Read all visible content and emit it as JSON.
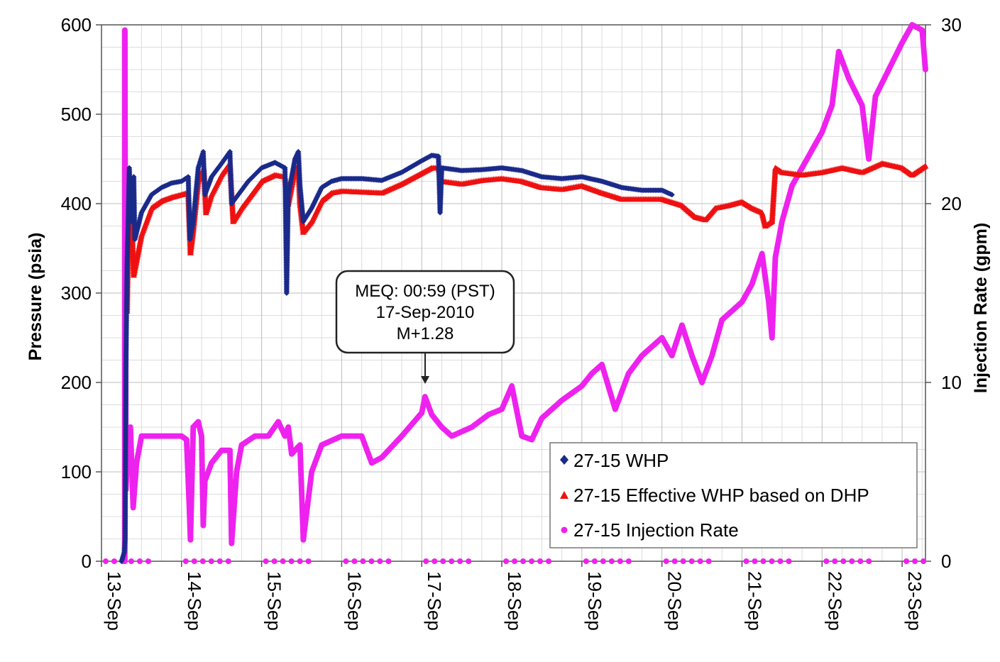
{
  "chart_data": {
    "type": "scatter",
    "x_axis": {
      "type": "date",
      "range": [
        "2010-09-13",
        "2010-09-23T07:00"
      ],
      "tick_labels": [
        "13-Sep",
        "14-Sep",
        "15-Sep",
        "16-Sep",
        "17-Sep",
        "18-Sep",
        "19-Sep",
        "20-Sep",
        "21-Sep",
        "22-Sep",
        "23-Sep"
      ]
    },
    "y_left": {
      "label": "Pressure (psia)",
      "range": [
        0,
        600
      ],
      "ticks": [
        "0",
        "100",
        "200",
        "300",
        "400",
        "500",
        "600"
      ]
    },
    "y_right": {
      "label": "Injection Rate (gpm)",
      "range": [
        0,
        30
      ],
      "ticks": [
        "0",
        "10",
        "20",
        "30"
      ]
    },
    "grid": true,
    "legend": {
      "placement": "bottom-right",
      "entries": [
        "27-15 WHP",
        "27-15 Effective WHP based on DHP",
        "27-15 Injection Rate"
      ]
    },
    "annotation": {
      "lines": [
        "MEQ: 00:59 (PST)",
        "17-Sep-2010",
        "M+1.28"
      ],
      "points_to": {
        "x": "2010-09-17T00:59",
        "rate": 10.0
      }
    },
    "colors": {
      "whp": "#1a2a8a",
      "effective": "#ee1111",
      "rate": "#ee22ee"
    },
    "series": [
      {
        "name": "27-15 WHP",
        "marker": "diamond",
        "axis": "left",
        "points": [
          [
            "2010-09-13T06:00",
            0
          ],
          [
            "2010-09-13T06:50",
            10
          ],
          [
            "2010-09-13T07:05",
            25
          ],
          [
            "2010-09-13T07:20",
            220
          ],
          [
            "2010-09-13T07:40",
            330
          ],
          [
            "2010-09-13T08:00",
            380
          ],
          [
            "2010-09-13T08:20",
            440
          ],
          [
            "2010-09-13T09:00",
            380
          ],
          [
            "2010-09-13T09:40",
            430
          ],
          [
            "2010-09-13T10:00",
            360
          ],
          [
            "2010-09-13T12:00",
            390
          ],
          [
            "2010-09-13T15:00",
            410
          ],
          [
            "2010-09-13T18:00",
            418
          ],
          [
            "2010-09-13T21:00",
            423
          ],
          [
            "2010-09-14T00:00",
            425
          ],
          [
            "2010-09-14T02:00",
            430
          ],
          [
            "2010-09-14T02:30",
            360
          ],
          [
            "2010-09-14T03:30",
            380
          ],
          [
            "2010-09-14T05:00",
            440
          ],
          [
            "2010-09-14T06:30",
            458
          ],
          [
            "2010-09-14T07:00",
            410
          ],
          [
            "2010-09-14T09:00",
            430
          ],
          [
            "2010-09-14T12:00",
            445
          ],
          [
            "2010-09-14T14:30",
            458
          ],
          [
            "2010-09-14T15:00",
            400
          ],
          [
            "2010-09-14T17:00",
            410
          ],
          [
            "2010-09-14T20:00",
            425
          ],
          [
            "2010-09-15T00:00",
            440
          ],
          [
            "2010-09-15T04:00",
            446
          ],
          [
            "2010-09-15T07:00",
            440
          ],
          [
            "2010-09-15T07:30",
            300
          ],
          [
            "2010-09-15T08:00",
            410
          ],
          [
            "2010-09-15T10:00",
            450
          ],
          [
            "2010-09-15T11:00",
            458
          ],
          [
            "2010-09-15T11:30",
            420
          ],
          [
            "2010-09-15T12:30",
            380
          ],
          [
            "2010-09-15T15:00",
            395
          ],
          [
            "2010-09-15T18:00",
            418
          ],
          [
            "2010-09-15T21:00",
            425
          ],
          [
            "2010-09-16T00:00",
            428
          ],
          [
            "2010-09-16T06:00",
            428
          ],
          [
            "2010-09-16T12:00",
            426
          ],
          [
            "2010-09-16T18:00",
            435
          ],
          [
            "2010-09-17T00:00",
            448
          ],
          [
            "2010-09-17T03:00",
            454
          ],
          [
            "2010-09-17T05:00",
            453
          ],
          [
            "2010-09-17T05:30",
            390
          ],
          [
            "2010-09-17T06:00",
            440
          ],
          [
            "2010-09-17T12:00",
            437
          ],
          [
            "2010-09-17T18:00",
            438
          ],
          [
            "2010-09-18T00:00",
            440
          ],
          [
            "2010-09-18T06:00",
            437
          ],
          [
            "2010-09-18T12:00",
            430
          ],
          [
            "2010-09-18T18:00",
            428
          ],
          [
            "2010-09-19T00:00",
            430
          ],
          [
            "2010-09-19T06:00",
            425
          ],
          [
            "2010-09-19T12:00",
            418
          ],
          [
            "2010-09-19T18:00",
            415
          ],
          [
            "2010-09-20T00:00",
            415
          ],
          [
            "2010-09-20T03:00",
            410
          ]
        ]
      },
      {
        "name": "27-15 Effective WHP based on DHP",
        "marker": "triangle",
        "axis": "left",
        "points": [
          [
            "2010-09-13T07:40",
            280
          ],
          [
            "2010-09-13T08:00",
            350
          ],
          [
            "2010-09-13T08:20",
            390
          ],
          [
            "2010-09-13T08:40",
            420
          ],
          [
            "2010-09-13T09:40",
            320
          ],
          [
            "2010-09-13T12:00",
            365
          ],
          [
            "2010-09-13T15:00",
            395
          ],
          [
            "2010-09-13T18:00",
            403
          ],
          [
            "2010-09-13T21:00",
            407
          ],
          [
            "2010-09-14T00:00",
            410
          ],
          [
            "2010-09-14T02:00",
            412
          ],
          [
            "2010-09-14T02:40",
            345
          ],
          [
            "2010-09-14T03:30",
            370
          ],
          [
            "2010-09-14T05:00",
            425
          ],
          [
            "2010-09-14T06:40",
            440
          ],
          [
            "2010-09-14T07:20",
            390
          ],
          [
            "2010-09-14T09:00",
            410
          ],
          [
            "2010-09-14T12:00",
            432
          ],
          [
            "2010-09-14T14:30",
            445
          ],
          [
            "2010-09-14T15:30",
            380
          ],
          [
            "2010-09-14T18:00",
            395
          ],
          [
            "2010-09-14T21:00",
            410
          ],
          [
            "2010-09-15T00:00",
            425
          ],
          [
            "2010-09-15T04:00",
            432
          ],
          [
            "2010-09-15T07:00",
            430
          ],
          [
            "2010-09-15T08:00",
            400
          ],
          [
            "2010-09-15T10:00",
            438
          ],
          [
            "2010-09-15T11:00",
            442
          ],
          [
            "2010-09-15T11:30",
            400
          ],
          [
            "2010-09-15T12:30",
            368
          ],
          [
            "2010-09-15T15:00",
            380
          ],
          [
            "2010-09-15T18:00",
            403
          ],
          [
            "2010-09-15T21:00",
            412
          ],
          [
            "2010-09-16T00:00",
            414
          ],
          [
            "2010-09-16T06:00",
            413
          ],
          [
            "2010-09-16T12:00",
            412
          ],
          [
            "2010-09-16T18:00",
            422
          ],
          [
            "2010-09-17T00:00",
            434
          ],
          [
            "2010-09-17T03:00",
            440
          ],
          [
            "2010-09-17T05:00",
            440
          ],
          [
            "2010-09-17T06:00",
            425
          ],
          [
            "2010-09-17T12:00",
            422
          ],
          [
            "2010-09-17T18:00",
            426
          ],
          [
            "2010-09-18T00:00",
            428
          ],
          [
            "2010-09-18T06:00",
            425
          ],
          [
            "2010-09-18T12:00",
            418
          ],
          [
            "2010-09-18T18:00",
            416
          ],
          [
            "2010-09-19T00:00",
            420
          ],
          [
            "2010-09-19T06:00",
            412
          ],
          [
            "2010-09-19T12:00",
            405
          ],
          [
            "2010-09-19T18:00",
            405
          ],
          [
            "2010-09-20T00:00",
            405
          ],
          [
            "2010-09-20T06:00",
            398
          ],
          [
            "2010-09-20T10:00",
            385
          ],
          [
            "2010-09-20T13:00",
            382
          ],
          [
            "2010-09-20T16:00",
            395
          ],
          [
            "2010-09-20T20:00",
            398
          ],
          [
            "2010-09-21T00:00",
            402
          ],
          [
            "2010-09-21T03:00",
            395
          ],
          [
            "2010-09-21T06:00",
            390
          ],
          [
            "2010-09-21T07:00",
            375
          ],
          [
            "2010-09-21T09:00",
            380
          ],
          [
            "2010-09-21T10:00",
            440
          ],
          [
            "2010-09-21T12:00",
            435
          ],
          [
            "2010-09-21T18:00",
            432
          ],
          [
            "2010-09-22T00:00",
            435
          ],
          [
            "2010-09-22T06:00",
            440
          ],
          [
            "2010-09-22T12:00",
            435
          ],
          [
            "2010-09-22T18:00",
            445
          ],
          [
            "2010-09-23T00:00",
            440
          ],
          [
            "2010-09-23T03:00",
            432
          ],
          [
            "2010-09-23T07:00",
            442
          ]
        ]
      },
      {
        "name": "27-15 Injection Rate",
        "marker": "circle",
        "axis": "right",
        "points": [
          [
            "2010-09-13T07:00",
            0
          ],
          [
            "2010-09-13T07:00",
            29.7
          ],
          [
            "2010-09-13T07:20",
            4
          ],
          [
            "2010-09-13T08:00",
            7
          ],
          [
            "2010-09-13T08:40",
            7.5
          ],
          [
            "2010-09-13T09:30",
            3
          ],
          [
            "2010-09-13T10:30",
            5.5
          ],
          [
            "2010-09-13T12:00",
            7
          ],
          [
            "2010-09-13T18:00",
            7
          ],
          [
            "2010-09-14T00:00",
            7
          ],
          [
            "2010-09-14T01:30",
            6.8
          ],
          [
            "2010-09-14T02:20",
            3
          ],
          [
            "2010-09-14T02:40",
            1.2
          ],
          [
            "2010-09-14T03:30",
            7.5
          ],
          [
            "2010-09-14T05:00",
            7.8
          ],
          [
            "2010-09-14T06:00",
            7
          ],
          [
            "2010-09-14T06:30",
            2
          ],
          [
            "2010-09-14T07:00",
            4.5
          ],
          [
            "2010-09-14T09:00",
            5.5
          ],
          [
            "2010-09-14T12:00",
            6.2
          ],
          [
            "2010-09-14T14:30",
            6.2
          ],
          [
            "2010-09-14T15:00",
            1
          ],
          [
            "2010-09-14T16:30",
            5
          ],
          [
            "2010-09-14T18:00",
            6.5
          ],
          [
            "2010-09-14T22:00",
            7
          ],
          [
            "2010-09-15T02:00",
            7
          ],
          [
            "2010-09-15T05:00",
            7.8
          ],
          [
            "2010-09-15T07:00",
            7
          ],
          [
            "2010-09-15T08:00",
            7.5
          ],
          [
            "2010-09-15T09:00",
            6
          ],
          [
            "2010-09-15T11:30",
            6.5
          ],
          [
            "2010-09-15T12:30",
            1.2
          ],
          [
            "2010-09-15T15:00",
            5
          ],
          [
            "2010-09-15T18:00",
            6.5
          ],
          [
            "2010-09-16T00:00",
            7
          ],
          [
            "2010-09-16T06:00",
            7
          ],
          [
            "2010-09-16T09:00",
            5.5
          ],
          [
            "2010-09-16T12:00",
            5.8
          ],
          [
            "2010-09-16T18:00",
            7
          ],
          [
            "2010-09-17T00:00",
            8.3
          ],
          [
            "2010-09-17T00:59",
            9.2
          ],
          [
            "2010-09-17T03:00",
            8.2
          ],
          [
            "2010-09-17T06:00",
            7.5
          ],
          [
            "2010-09-17T09:00",
            7
          ],
          [
            "2010-09-17T15:00",
            7.5
          ],
          [
            "2010-09-17T20:00",
            8.2
          ],
          [
            "2010-09-18T00:00",
            8.5
          ],
          [
            "2010-09-18T03:00",
            9.8
          ],
          [
            "2010-09-18T06:00",
            7
          ],
          [
            "2010-09-18T09:00",
            6.8
          ],
          [
            "2010-09-18T12:00",
            8
          ],
          [
            "2010-09-18T18:00",
            9
          ],
          [
            "2010-09-19T00:00",
            9.8
          ],
          [
            "2010-09-19T03:00",
            10.5
          ],
          [
            "2010-09-19T06:00",
            11
          ],
          [
            "2010-09-19T10:00",
            8.5
          ],
          [
            "2010-09-19T14:00",
            10.5
          ],
          [
            "2010-09-19T18:00",
            11.5
          ],
          [
            "2010-09-20T00:00",
            12.5
          ],
          [
            "2010-09-20T03:00",
            11.5
          ],
          [
            "2010-09-20T06:00",
            13.2
          ],
          [
            "2010-09-20T09:00",
            11.5
          ],
          [
            "2010-09-20T12:00",
            10
          ],
          [
            "2010-09-20T15:00",
            11.5
          ],
          [
            "2010-09-20T18:00",
            13.5
          ],
          [
            "2010-09-21T00:00",
            14.5
          ],
          [
            "2010-09-21T03:00",
            15.5
          ],
          [
            "2010-09-21T06:00",
            17.2
          ],
          [
            "2010-09-21T08:00",
            14.5
          ],
          [
            "2010-09-21T09:00",
            12.5
          ],
          [
            "2010-09-21T10:00",
            17
          ],
          [
            "2010-09-21T12:00",
            19
          ],
          [
            "2010-09-21T15:00",
            21
          ],
          [
            "2010-09-21T18:00",
            22
          ],
          [
            "2010-09-22T00:00",
            24
          ],
          [
            "2010-09-22T03:00",
            25.5
          ],
          [
            "2010-09-22T05:00",
            28.5
          ],
          [
            "2010-09-22T08:00",
            27
          ],
          [
            "2010-09-22T12:00",
            25.5
          ],
          [
            "2010-09-22T14:00",
            22.5
          ],
          [
            "2010-09-22T16:00",
            26
          ],
          [
            "2010-09-22T20:00",
            27.5
          ],
          [
            "2010-09-23T00:00",
            29
          ],
          [
            "2010-09-23T03:00",
            30
          ],
          [
            "2010-09-23T06:00",
            29.7
          ],
          [
            "2010-09-23T07:00",
            27.5
          ]
        ],
        "zero_days": [
          "2010-09-13",
          "2010-09-14",
          "2010-09-15",
          "2010-09-16",
          "2010-09-17",
          "2010-09-18",
          "2010-09-19",
          "2010-09-20",
          "2010-09-21",
          "2010-09-22",
          "2010-09-23"
        ]
      }
    ]
  }
}
